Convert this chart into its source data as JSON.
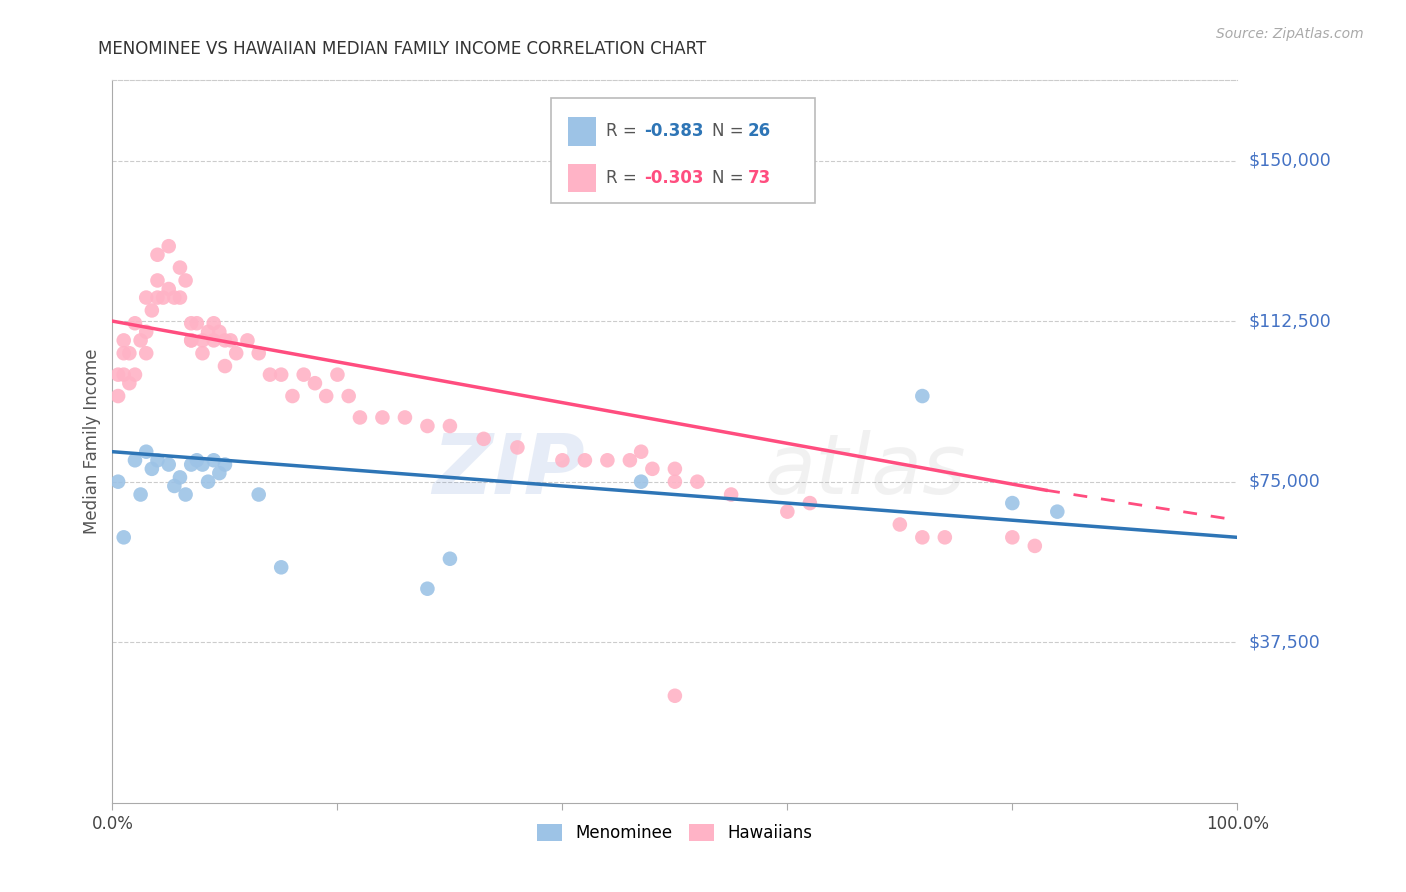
{
  "title": "MENOMINEE VS HAWAIIAN MEDIAN FAMILY INCOME CORRELATION CHART",
  "source": "Source: ZipAtlas.com",
  "ylabel": "Median Family Income",
  "ytick_color": "#4472C4",
  "xmin": 0.0,
  "xmax": 1.0,
  "ymin": 0,
  "ymax": 168750,
  "menominee_color": "#9DC3E6",
  "hawaiian_color": "#FFB3C6",
  "menominee_line_color": "#2E75B6",
  "hawaiian_line_color": "#FF4D7F",
  "background_color": "#ffffff",
  "grid_color": "#cccccc",
  "menominee_r": "-0.383",
  "menominee_n": "26",
  "hawaiian_r": "-0.303",
  "hawaiian_n": "73",
  "menominee_x": [
    0.005,
    0.01,
    0.02,
    0.025,
    0.03,
    0.035,
    0.04,
    0.05,
    0.055,
    0.06,
    0.065,
    0.07,
    0.075,
    0.08,
    0.085,
    0.09,
    0.095,
    0.1,
    0.13,
    0.15,
    0.28,
    0.3,
    0.47,
    0.72,
    0.8,
    0.84
  ],
  "menominee_y": [
    75000,
    62000,
    80000,
    72000,
    82000,
    78000,
    80000,
    79000,
    74000,
    76000,
    72000,
    79000,
    80000,
    79000,
    75000,
    80000,
    77000,
    79000,
    72000,
    55000,
    50000,
    57000,
    75000,
    95000,
    70000,
    68000
  ],
  "hawaiian_x": [
    0.005,
    0.005,
    0.01,
    0.01,
    0.01,
    0.015,
    0.015,
    0.02,
    0.02,
    0.025,
    0.03,
    0.03,
    0.03,
    0.035,
    0.04,
    0.04,
    0.04,
    0.045,
    0.05,
    0.05,
    0.055,
    0.06,
    0.06,
    0.065,
    0.07,
    0.07,
    0.07,
    0.075,
    0.08,
    0.08,
    0.085,
    0.09,
    0.09,
    0.095,
    0.1,
    0.1,
    0.105,
    0.11,
    0.12,
    0.13,
    0.14,
    0.15,
    0.16,
    0.17,
    0.18,
    0.19,
    0.2,
    0.21,
    0.22,
    0.24,
    0.26,
    0.28,
    0.3,
    0.33,
    0.36,
    0.4,
    0.42,
    0.44,
    0.46,
    0.47,
    0.48,
    0.5,
    0.52,
    0.55,
    0.6,
    0.62,
    0.7,
    0.72,
    0.74,
    0.8,
    0.82,
    0.5,
    0.5
  ],
  "hawaiian_y": [
    100000,
    95000,
    108000,
    105000,
    100000,
    105000,
    98000,
    112000,
    100000,
    108000,
    118000,
    110000,
    105000,
    115000,
    128000,
    122000,
    118000,
    118000,
    130000,
    120000,
    118000,
    125000,
    118000,
    122000,
    108000,
    112000,
    108000,
    112000,
    108000,
    105000,
    110000,
    112000,
    108000,
    110000,
    108000,
    102000,
    108000,
    105000,
    108000,
    105000,
    100000,
    100000,
    95000,
    100000,
    98000,
    95000,
    100000,
    95000,
    90000,
    90000,
    90000,
    88000,
    88000,
    85000,
    83000,
    80000,
    80000,
    80000,
    80000,
    82000,
    78000,
    78000,
    75000,
    72000,
    68000,
    70000,
    65000,
    62000,
    62000,
    62000,
    60000,
    75000,
    25000
  ]
}
